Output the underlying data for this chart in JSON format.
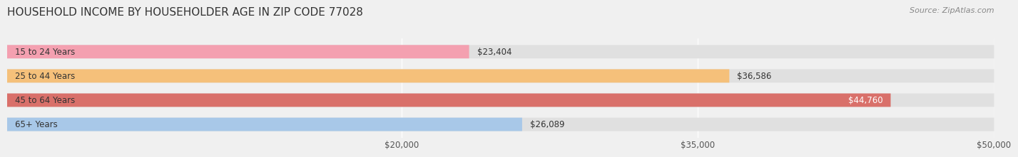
{
  "title": "HOUSEHOLD INCOME BY HOUSEHOLDER AGE IN ZIP CODE 77028",
  "source": "Source: ZipAtlas.com",
  "categories": [
    "15 to 24 Years",
    "25 to 44 Years",
    "45 to 64 Years",
    "65+ Years"
  ],
  "values": [
    23404,
    36586,
    44760,
    26089
  ],
  "bar_colors": [
    "#f4a0b0",
    "#f5c07a",
    "#d9706a",
    "#a8c8e8"
  ],
  "labels": [
    "$23,404",
    "$36,586",
    "$44,760",
    "$26,089"
  ],
  "xmin": 0,
  "xmax": 50000,
  "xticks": [
    20000,
    35000,
    50000
  ],
  "xtick_labels": [
    "$20,000",
    "$35,000",
    "$50,000"
  ],
  "bar_height": 0.55,
  "background_color": "#f0f0f0",
  "title_fontsize": 11,
  "label_fontsize": 8.5,
  "tick_fontsize": 8.5,
  "source_fontsize": 8
}
